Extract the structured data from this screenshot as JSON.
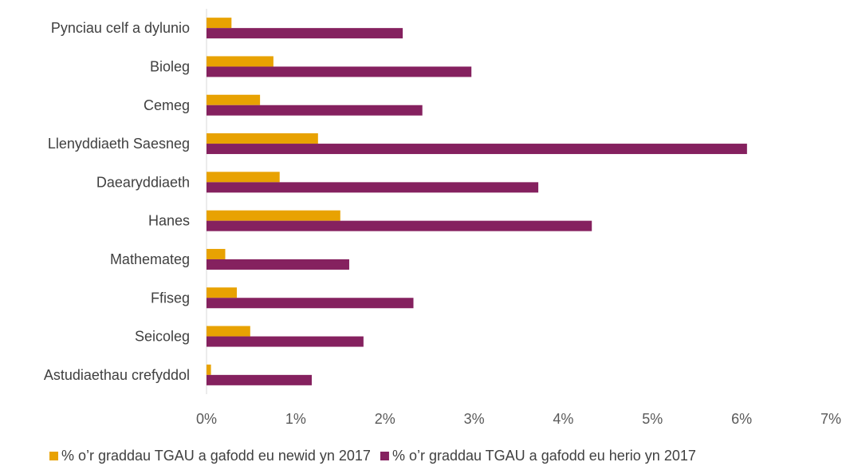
{
  "chart_data": {
    "type": "bar",
    "orientation": "horizontal",
    "categories": [
      "Pynciau celf a dylunio",
      "Bioleg",
      "Cemeg",
      "Llenyddiaeth Saesneg",
      "Daearyddiaeth",
      "Hanes",
      "Mathemateg",
      "Ffiseg",
      "Seicoleg",
      "Astudiaethau crefyddol"
    ],
    "series": [
      {
        "name": "% o’r graddau TGAU a gafodd eu newid yn 2017",
        "color": "#E8A202",
        "values": [
          0.28,
          0.75,
          0.6,
          1.25,
          0.82,
          1.5,
          0.21,
          0.34,
          0.49,
          0.05
        ]
      },
      {
        "name": "% o’r graddau TGAU a gafodd eu herio yn 2017",
        "color": "#85215F",
        "values": [
          2.2,
          2.97,
          2.42,
          6.06,
          3.72,
          4.32,
          1.6,
          2.32,
          1.76,
          1.18
        ]
      }
    ],
    "xlim": [
      0,
      7
    ],
    "xticks": [
      "0%",
      "1%",
      "2%",
      "3%",
      "4%",
      "5%",
      "6%",
      "7%"
    ],
    "grid": false,
    "legend_position": "bottom"
  }
}
